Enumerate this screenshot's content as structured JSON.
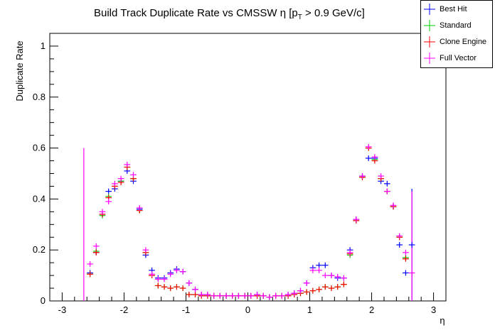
{
  "chart_data": {
    "type": "scatter",
    "title_main": "Build Track Duplicate Rate vs CMSSW ",
    "title_eta": "η",
    "title_cut": " [p",
    "title_sub": "T",
    "title_rest": " > 0.9 GeV/c]",
    "xlabel": "η",
    "ylabel": "Duplicate Rate",
    "xlim": [
      -3.2,
      3.2
    ],
    "ylim": [
      0,
      1.05
    ],
    "x_ticks": [
      "-3",
      "-2",
      "-1",
      "0",
      "1",
      "2",
      "3"
    ],
    "y_ticks": [
      "0",
      "0.2",
      "0.4",
      "0.6",
      "0.8",
      "1"
    ],
    "legend_position": "top-right",
    "x": [
      -2.55,
      -2.45,
      -2.35,
      -2.25,
      -2.15,
      -2.05,
      -1.95,
      -1.85,
      -1.75,
      -1.65,
      -1.55,
      -1.45,
      -1.35,
      -1.25,
      -1.15,
      -1.05,
      -0.95,
      -0.85,
      -0.75,
      -0.65,
      -0.55,
      -0.45,
      -0.35,
      -0.25,
      -0.15,
      -0.05,
      0.05,
      0.15,
      0.25,
      0.35,
      0.45,
      0.55,
      0.65,
      0.75,
      0.85,
      0.95,
      1.05,
      1.15,
      1.25,
      1.35,
      1.45,
      1.55,
      1.65,
      1.75,
      1.85,
      1.95,
      2.05,
      2.15,
      2.25,
      2.35,
      2.45,
      2.55,
      2.65
    ],
    "series": [
      {
        "name": "Best Hit",
        "color": "#0000ff",
        "values": [
          0.11,
          0.19,
          0.34,
          0.43,
          0.44,
          0.47,
          0.51,
          0.47,
          0.36,
          0.18,
          0.12,
          0.09,
          0.09,
          0.11,
          0.125,
          0.115,
          0.07,
          0.045,
          0.025,
          0.025,
          0.02,
          0.02,
          0.02,
          0.02,
          0.02,
          0.02,
          0.02,
          0.025,
          0.02,
          0.015,
          0.02,
          0.02,
          0.025,
          0.03,
          0.04,
          0.07,
          0.13,
          0.14,
          0.14,
          0.1,
          0.09,
          0.09,
          0.2,
          0.32,
          0.49,
          0.56,
          0.56,
          0.47,
          0.46,
          0.37,
          0.22,
          0.11,
          0.22
        ]
      },
      {
        "name": "Standard",
        "color": "#00cc00",
        "values": [
          0.105,
          0.195,
          0.335,
          0.41,
          0.45,
          0.47,
          0.525,
          0.48,
          0.355,
          0.19,
          0.1,
          0.06,
          0.055,
          0.05,
          0.055,
          0.05,
          0.025,
          0.025,
          0.02,
          0.02,
          0.02,
          0.02,
          0.02,
          0.02,
          0.02,
          0.02,
          0.02,
          0.02,
          0.02,
          0.015,
          0.02,
          0.02,
          0.02,
          0.025,
          0.03,
          0.035,
          0.04,
          0.045,
          0.055,
          0.05,
          0.055,
          0.065,
          0.18,
          0.315,
          0.485,
          0.6,
          0.555,
          0.48,
          0.43,
          0.37,
          0.25,
          0.17,
          0.0
        ]
      },
      {
        "name": "Clone Engine",
        "color": "#ff0000",
        "values": [
          0.105,
          0.19,
          0.34,
          0.405,
          0.45,
          0.465,
          0.525,
          0.48,
          0.355,
          0.19,
          0.1,
          0.06,
          0.055,
          0.05,
          0.055,
          0.05,
          0.025,
          0.025,
          0.02,
          0.02,
          0.02,
          0.02,
          0.02,
          0.02,
          0.02,
          0.02,
          0.02,
          0.02,
          0.02,
          0.015,
          0.02,
          0.02,
          0.02,
          0.025,
          0.03,
          0.035,
          0.04,
          0.045,
          0.055,
          0.05,
          0.055,
          0.065,
          0.185,
          0.315,
          0.485,
          0.6,
          0.55,
          0.48,
          0.43,
          0.37,
          0.25,
          0.165,
          0.0
        ]
      },
      {
        "name": "Full Vector",
        "color": "#ff00ff",
        "values": [
          0.145,
          0.215,
          0.35,
          0.39,
          0.46,
          0.48,
          0.535,
          0.495,
          0.365,
          0.2,
          0.105,
          0.085,
          0.085,
          0.105,
          0.12,
          0.115,
          0.07,
          0.045,
          0.025,
          0.025,
          0.02,
          0.02,
          0.02,
          0.02,
          0.02,
          0.02,
          0.02,
          0.025,
          0.02,
          0.015,
          0.02,
          0.02,
          0.025,
          0.03,
          0.04,
          0.07,
          0.12,
          0.12,
          0.1,
          0.1,
          0.095,
          0.09,
          0.19,
          0.32,
          0.49,
          0.605,
          0.565,
          0.49,
          0.43,
          0.375,
          0.255,
          0.19,
          0.11
        ]
      }
    ],
    "spikes": [
      {
        "series": "Full Vector",
        "x": -2.65,
        "low": 0.0,
        "high": 0.6
      },
      {
        "series": "Best Hit",
        "x": 2.65,
        "low": 0.0,
        "high": 0.44
      },
      {
        "series": "Full Vector",
        "x": 2.65,
        "low": 0.0,
        "high": 0.43
      }
    ]
  },
  "legend": {
    "items": [
      {
        "label": "Best Hit",
        "color": "#0000ff"
      },
      {
        "label": "Standard",
        "color": "#00cc00"
      },
      {
        "label": "Clone Engine",
        "color": "#ff0000"
      },
      {
        "label": "Full Vector",
        "color": "#ff00ff"
      }
    ]
  }
}
